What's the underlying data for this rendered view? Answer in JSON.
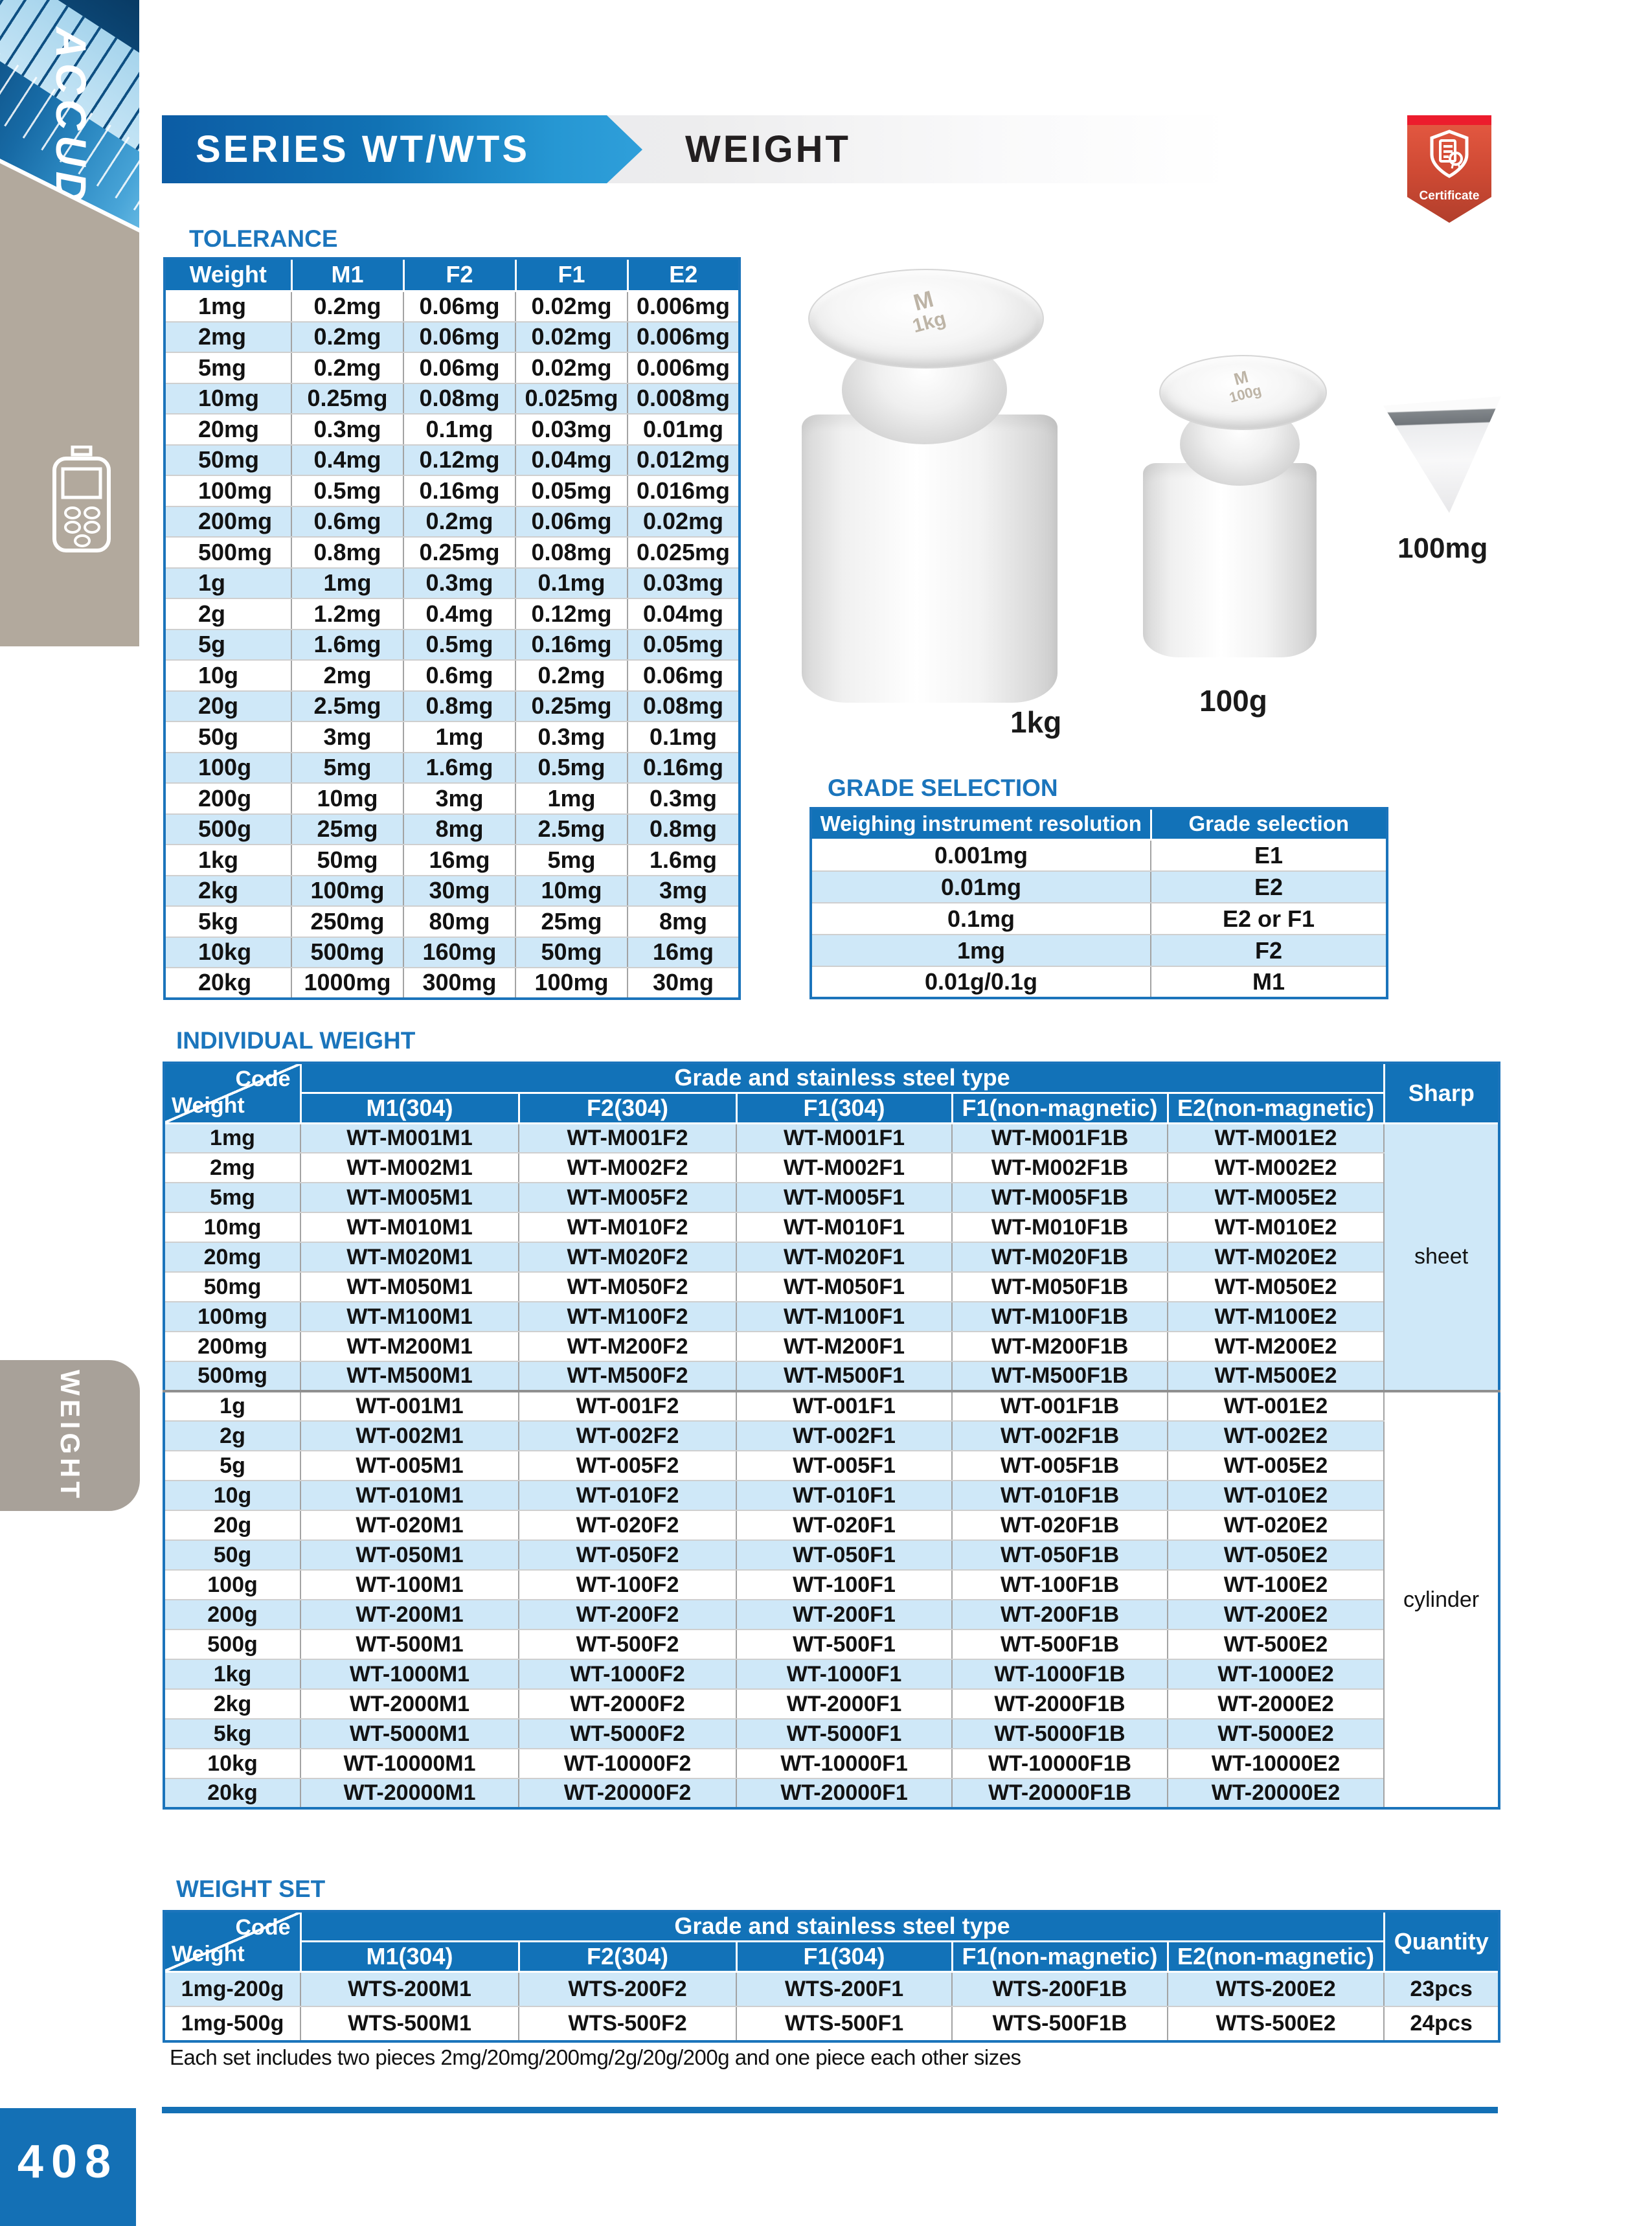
{
  "page": {
    "number": "408"
  },
  "sidebar": {
    "brand": "ACCUD",
    "tab_label": "WEIGHT"
  },
  "header": {
    "series": "SERIES WT/WTS",
    "title": "WEIGHT",
    "certificate_label": "Certificate"
  },
  "colors": {
    "accent_blue": "#1272b8",
    "light_row_blue": "#cfe8f8",
    "heading_blue": "#1b75bc",
    "certificate_red": "#ec1c2d",
    "banner_dark_blue": "#0c5ca4",
    "banner_light_blue": "#2f9fda"
  },
  "tolerance": {
    "title": "TOLERANCE",
    "columns": [
      "Weight",
      "M1",
      "F2",
      "F1",
      "E2"
    ],
    "rows": [
      [
        "1mg",
        "0.2mg",
        "0.06mg",
        "0.02mg",
        "0.006mg"
      ],
      [
        "2mg",
        "0.2mg",
        "0.06mg",
        "0.02mg",
        "0.006mg"
      ],
      [
        "5mg",
        "0.2mg",
        "0.06mg",
        "0.02mg",
        "0.006mg"
      ],
      [
        "10mg",
        "0.25mg",
        "0.08mg",
        "0.025mg",
        "0.008mg"
      ],
      [
        "20mg",
        "0.3mg",
        "0.1mg",
        "0.03mg",
        "0.01mg"
      ],
      [
        "50mg",
        "0.4mg",
        "0.12mg",
        "0.04mg",
        "0.012mg"
      ],
      [
        "100mg",
        "0.5mg",
        "0.16mg",
        "0.05mg",
        "0.016mg"
      ],
      [
        "200mg",
        "0.6mg",
        "0.2mg",
        "0.06mg",
        "0.02mg"
      ],
      [
        "500mg",
        "0.8mg",
        "0.25mg",
        "0.08mg",
        "0.025mg"
      ],
      [
        "1g",
        "1mg",
        "0.3mg",
        "0.1mg",
        "0.03mg"
      ],
      [
        "2g",
        "1.2mg",
        "0.4mg",
        "0.12mg",
        "0.04mg"
      ],
      [
        "5g",
        "1.6mg",
        "0.5mg",
        "0.16mg",
        "0.05mg"
      ],
      [
        "10g",
        "2mg",
        "0.6mg",
        "0.2mg",
        "0.06mg"
      ],
      [
        "20g",
        "2.5mg",
        "0.8mg",
        "0.25mg",
        "0.08mg"
      ],
      [
        "50g",
        "3mg",
        "1mg",
        "0.3mg",
        "0.1mg"
      ],
      [
        "100g",
        "5mg",
        "1.6mg",
        "0.5mg",
        "0.16mg"
      ],
      [
        "200g",
        "10mg",
        "3mg",
        "1mg",
        "0.3mg"
      ],
      [
        "500g",
        "25mg",
        "8mg",
        "2.5mg",
        "0.8mg"
      ],
      [
        "1kg",
        "50mg",
        "16mg",
        "5mg",
        "1.6mg"
      ],
      [
        "2kg",
        "100mg",
        "30mg",
        "10mg",
        "3mg"
      ],
      [
        "5kg",
        "250mg",
        "80mg",
        "25mg",
        "8mg"
      ],
      [
        "10kg",
        "500mg",
        "160mg",
        "50mg",
        "16mg"
      ],
      [
        "20kg",
        "1000mg",
        "300mg",
        "100mg",
        "30mg"
      ]
    ]
  },
  "weights_figure": {
    "items": [
      {
        "label": "1kg",
        "engraving_line1": "M",
        "engraving_line2": "1kg",
        "shape": "cylinder"
      },
      {
        "label": "100g",
        "engraving_line1": "M",
        "engraving_line2": "100g",
        "shape": "cylinder"
      },
      {
        "label": "100mg",
        "shape": "sheet"
      }
    ]
  },
  "grade_selection": {
    "title": "GRADE SELECTION",
    "columns": [
      "Weighing instrument resolution",
      "Grade selection"
    ],
    "rows": [
      [
        "0.001mg",
        "E1"
      ],
      [
        "0.01mg",
        "E2"
      ],
      [
        "0.1mg",
        "E2 or F1"
      ],
      [
        "1mg",
        "F2"
      ],
      [
        "0.01g/0.1g",
        "M1"
      ]
    ]
  },
  "individual_weight": {
    "title": "INDIVIDUAL WEIGHT",
    "corner": {
      "top": "Code",
      "bottom": "Weight"
    },
    "group_header": "Grade and stainless steel type",
    "columns": [
      "M1(304)",
      "F2(304)",
      "F1(304)",
      "F1(non-magnetic)",
      "E2(non-magnetic)"
    ],
    "shape_column": "Sharp",
    "shape_groups": [
      {
        "label": "sheet",
        "rows": 9
      },
      {
        "label": "cylinder",
        "rows": 14
      }
    ],
    "rows": [
      [
        "1mg",
        "WT-M001M1",
        "WT-M001F2",
        "WT-M001F1",
        "WT-M001F1B",
        "WT-M001E2"
      ],
      [
        "2mg",
        "WT-M002M1",
        "WT-M002F2",
        "WT-M002F1",
        "WT-M002F1B",
        "WT-M002E2"
      ],
      [
        "5mg",
        "WT-M005M1",
        "WT-M005F2",
        "WT-M005F1",
        "WT-M005F1B",
        "WT-M005E2"
      ],
      [
        "10mg",
        "WT-M010M1",
        "WT-M010F2",
        "WT-M010F1",
        "WT-M010F1B",
        "WT-M010E2"
      ],
      [
        "20mg",
        "WT-M020M1",
        "WT-M020F2",
        "WT-M020F1",
        "WT-M020F1B",
        "WT-M020E2"
      ],
      [
        "50mg",
        "WT-M050M1",
        "WT-M050F2",
        "WT-M050F1",
        "WT-M050F1B",
        "WT-M050E2"
      ],
      [
        "100mg",
        "WT-M100M1",
        "WT-M100F2",
        "WT-M100F1",
        "WT-M100F1B",
        "WT-M100E2"
      ],
      [
        "200mg",
        "WT-M200M1",
        "WT-M200F2",
        "WT-M200F1",
        "WT-M200F1B",
        "WT-M200E2"
      ],
      [
        "500mg",
        "WT-M500M1",
        "WT-M500F2",
        "WT-M500F1",
        "WT-M500F1B",
        "WT-M500E2"
      ],
      [
        "1g",
        "WT-001M1",
        "WT-001F2",
        "WT-001F1",
        "WT-001F1B",
        "WT-001E2"
      ],
      [
        "2g",
        "WT-002M1",
        "WT-002F2",
        "WT-002F1",
        "WT-002F1B",
        "WT-002E2"
      ],
      [
        "5g",
        "WT-005M1",
        "WT-005F2",
        "WT-005F1",
        "WT-005F1B",
        "WT-005E2"
      ],
      [
        "10g",
        "WT-010M1",
        "WT-010F2",
        "WT-010F1",
        "WT-010F1B",
        "WT-010E2"
      ],
      [
        "20g",
        "WT-020M1",
        "WT-020F2",
        "WT-020F1",
        "WT-020F1B",
        "WT-020E2"
      ],
      [
        "50g",
        "WT-050M1",
        "WT-050F2",
        "WT-050F1",
        "WT-050F1B",
        "WT-050E2"
      ],
      [
        "100g",
        "WT-100M1",
        "WT-100F2",
        "WT-100F1",
        "WT-100F1B",
        "WT-100E2"
      ],
      [
        "200g",
        "WT-200M1",
        "WT-200F2",
        "WT-200F1",
        "WT-200F1B",
        "WT-200E2"
      ],
      [
        "500g",
        "WT-500M1",
        "WT-500F2",
        "WT-500F1",
        "WT-500F1B",
        "WT-500E2"
      ],
      [
        "1kg",
        "WT-1000M1",
        "WT-1000F2",
        "WT-1000F1",
        "WT-1000F1B",
        "WT-1000E2"
      ],
      [
        "2kg",
        "WT-2000M1",
        "WT-2000F2",
        "WT-2000F1",
        "WT-2000F1B",
        "WT-2000E2"
      ],
      [
        "5kg",
        "WT-5000M1",
        "WT-5000F2",
        "WT-5000F1",
        "WT-5000F1B",
        "WT-5000E2"
      ],
      [
        "10kg",
        "WT-10000M1",
        "WT-10000F2",
        "WT-10000F1",
        "WT-10000F1B",
        "WT-10000E2"
      ],
      [
        "20kg",
        "WT-20000M1",
        "WT-20000F2",
        "WT-20000F1",
        "WT-20000F1B",
        "WT-20000E2"
      ]
    ]
  },
  "weight_set": {
    "title": "WEIGHT SET",
    "corner": {
      "top": "Code",
      "bottom": "Weight"
    },
    "group_header": "Grade and stainless steel type",
    "columns": [
      "M1(304)",
      "F2(304)",
      "F1(304)",
      "F1(non-magnetic)",
      "E2(non-magnetic)"
    ],
    "quantity_column": "Quantity",
    "rows": [
      [
        "1mg-200g",
        "WTS-200M1",
        "WTS-200F2",
        "WTS-200F1",
        "WTS-200F1B",
        "WTS-200E2",
        "23pcs"
      ],
      [
        "1mg-500g",
        "WTS-500M1",
        "WTS-500F2",
        "WTS-500F1",
        "WTS-500F1B",
        "WTS-500E2",
        "24pcs"
      ]
    ],
    "note": "Each set includes two pieces  2mg/20mg/200mg/2g/20g/200g and one piece each other sizes"
  }
}
